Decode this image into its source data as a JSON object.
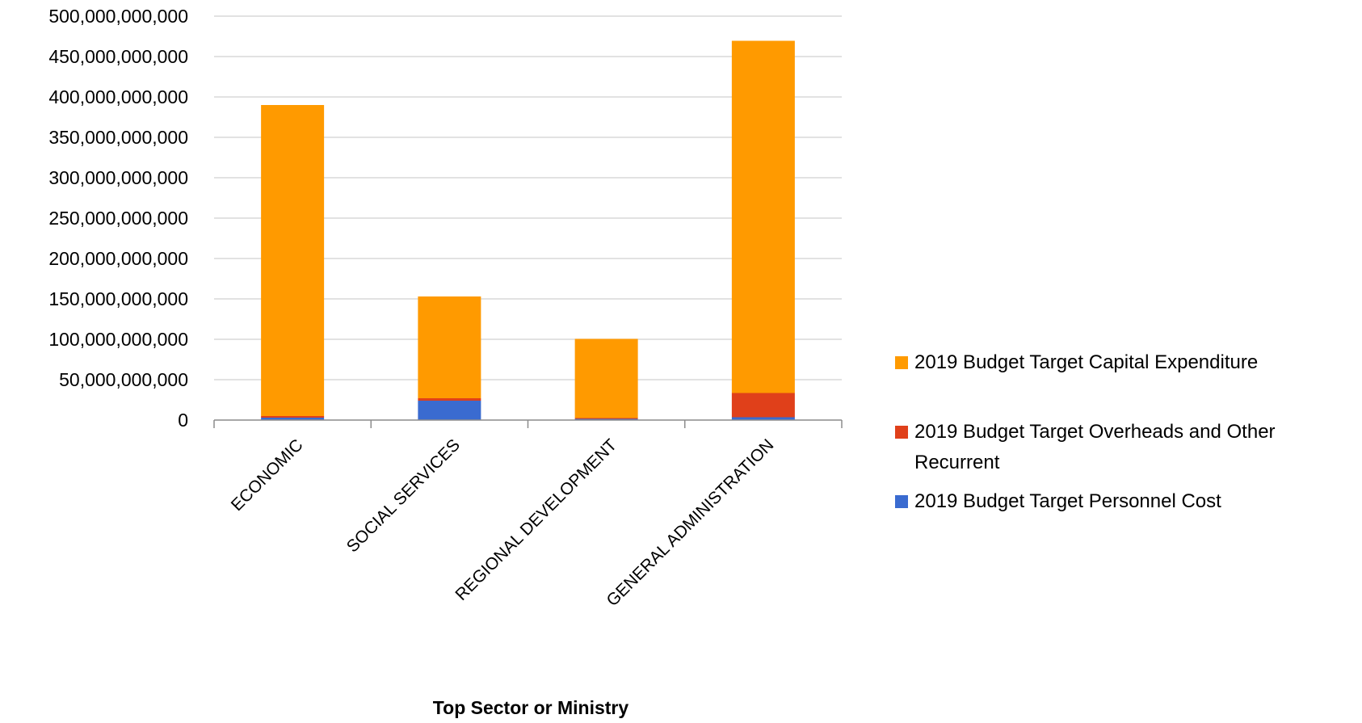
{
  "chart_data": {
    "type": "bar",
    "stacked": true,
    "title": "",
    "xlabel": "Top Sector or Ministry",
    "ylabel": "",
    "ylim": [
      0,
      500000000000
    ],
    "y_tick_step": 50000000000,
    "y_tick_labels": [
      "0",
      "50,000,000,000",
      "100,000,000,000",
      "150,000,000,000",
      "200,000,000,000",
      "250,000,000,000",
      "300,000,000,000",
      "350,000,000,000",
      "400,000,000,000",
      "450,000,000,000",
      "500,000,000,000"
    ],
    "grid": true,
    "legend_position": "right",
    "categories": [
      "ECONOMIC",
      "SOCIAL SERVICES",
      "REGIONAL DEVELOPMENT",
      "GENERAL ADMINISTRATION"
    ],
    "series": [
      {
        "name": "2019 Budget Target Personnel Cost",
        "color": "#3A6BD0",
        "values": [
          3000000000,
          24000000000,
          1500000000,
          3500000000
        ]
      },
      {
        "name": "2019 Budget Target Overheads and Other Recurrent",
        "color": "#E0401A",
        "values": [
          2000000000,
          3000000000,
          1000000000,
          30000000000
        ]
      },
      {
        "name": "2019 Budget Target Capital Expenditure",
        "color": "#FF9A00",
        "values": [
          385000000000,
          126000000000,
          98000000000,
          436000000000
        ]
      }
    ],
    "legend_order": [
      2,
      1,
      0
    ]
  }
}
